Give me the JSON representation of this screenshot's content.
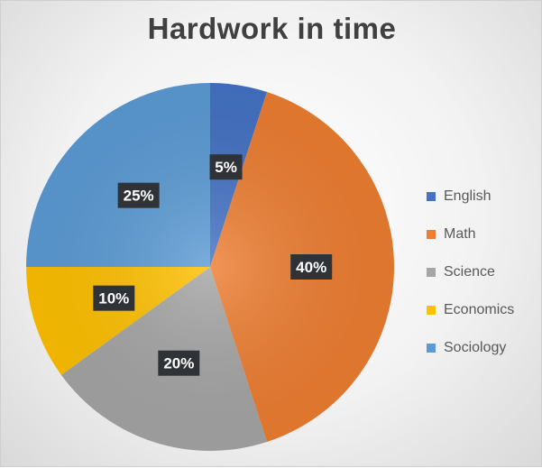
{
  "chart_data": {
    "type": "pie",
    "title": "Hardwork in time",
    "slices": [
      {
        "label": "English",
        "value": 5,
        "display": "5%",
        "color": "#4472C4"
      },
      {
        "label": "Math",
        "value": 40,
        "display": "40%",
        "color": "#ED7D31"
      },
      {
        "label": "Science",
        "value": 20,
        "display": "20%",
        "color": "#A5A5A5"
      },
      {
        "label": "Economics",
        "value": 10,
        "display": "10%",
        "color": "#FFC000"
      },
      {
        "label": "Sociology",
        "value": 25,
        "display": "25%",
        "color": "#5B9BD5"
      }
    ],
    "legend_position": "right",
    "data_label_style": "white text on dark box"
  }
}
